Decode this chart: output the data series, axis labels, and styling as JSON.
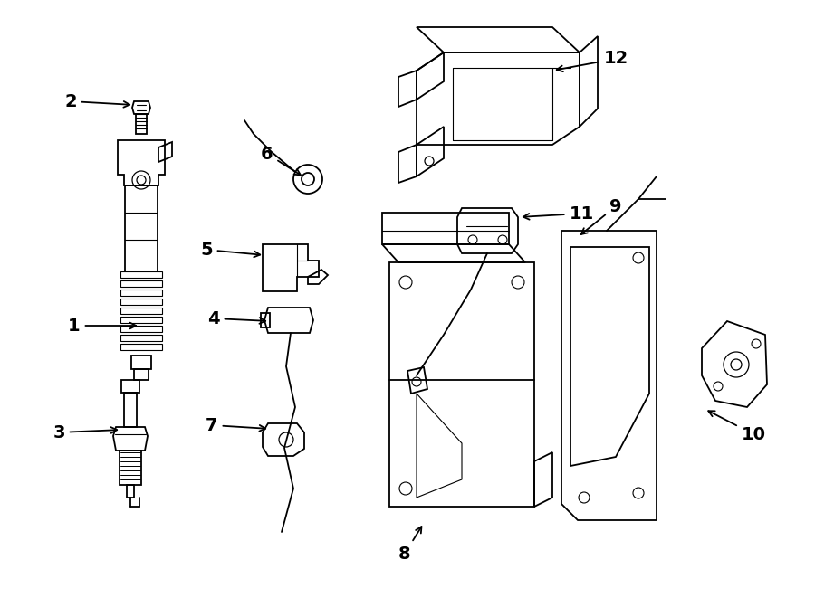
{
  "background": "#ffffff",
  "line_color": "#000000",
  "line_width": 1.3,
  "label_fontsize": 14
}
